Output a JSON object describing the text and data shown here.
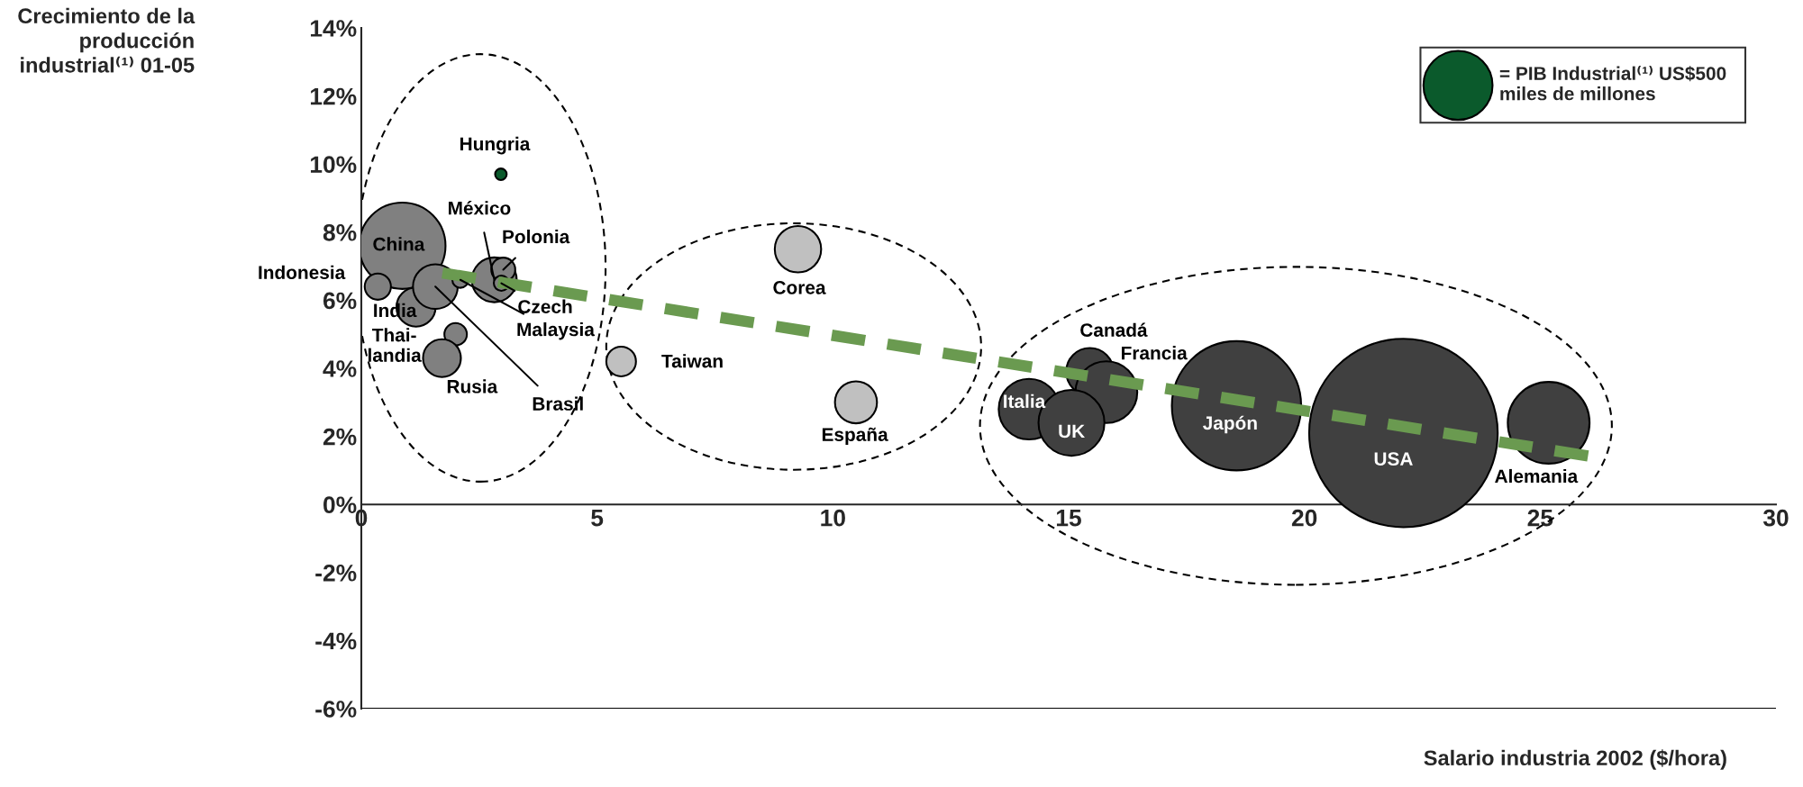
{
  "chart_data": {
    "type": "bubble",
    "xlabel": "Salario industria 2002 ($/hora)",
    "xlim": [
      0,
      30
    ],
    "xticks": [
      0,
      5,
      10,
      15,
      20,
      25,
      30
    ],
    "ylim": [
      -6,
      14
    ],
    "yticks": [
      {
        "value": -6,
        "label": "-6%"
      },
      {
        "value": -4,
        "label": "-4%"
      },
      {
        "value": -2,
        "label": "-2%"
      },
      {
        "value": 0,
        "label": "0%"
      },
      {
        "value": 2,
        "label": "2%"
      },
      {
        "value": 4,
        "label": "4%"
      },
      {
        "value": 6,
        "label": "6%"
      },
      {
        "value": 8,
        "label": "8%"
      },
      {
        "value": 10,
        "label": "10%"
      },
      {
        "value": 12,
        "label": "12%"
      },
      {
        "value": 14,
        "label": "14%"
      }
    ],
    "grid": false,
    "size_legend": [
      {
        "value": 500,
        "label": "= PIB Industrial⁽¹⁾ US$500\nmiles de millones"
      }
    ],
    "series": [
      {
        "color": "#0b5a2c",
        "x": [
          0.87,
          0.35,
          1.16,
          1.57,
          2.82,
          3.01,
          2.97,
          2.1,
          2.0,
          1.71,
          2.96,
          9.26,
          5.51,
          10.49,
          14.16,
          15.45,
          15.8,
          15.06,
          18.56,
          22.1,
          25.18
        ],
        "values": [
          7.6,
          6.4,
          5.8,
          6.4,
          6.6,
          6.9,
          6.5,
          6.6,
          5.0,
          4.3,
          9.7,
          7.5,
          4.2,
          3.0,
          2.8,
          3.9,
          3.3,
          2.4,
          2.9,
          2.1,
          2.4
        ],
        "sizes": [
          780,
          72,
          160,
          210,
          210,
          60,
          24,
          27,
          53,
          150,
          14,
          225,
          92,
          185,
          385,
          235,
          400,
          455,
          1750,
          3720,
          700
        ],
        "colors": [
          "#808080",
          "#808080",
          "#808080",
          "#808080",
          "#808080",
          "#808080",
          "#808080",
          "#808080",
          "#808080",
          "#808080",
          "#0b5a2c",
          "#c0c0c0",
          "#c0c0c0",
          "#c0c0c0",
          "#404040",
          "#404040",
          "#404040",
          "#404040",
          "#404040",
          "#404040",
          "#404040"
        ]
      },
      {
        "type": "line",
        "color": "#6a9a50",
        "line_style": "dashed",
        "marker": "none",
        "x": [
          1.72,
          26.35
        ],
        "values": [
          6.8,
          1.35
        ]
      }
    ],
    "annotations": [
      {
        "text": "China",
        "x": 0.87,
        "y": 7.6
      },
      {
        "text": "Indonesia",
        "x": 0.35,
        "y": 6.4
      },
      {
        "text": "India",
        "x": 1.16,
        "y": 5.8
      },
      {
        "text": "Brasil",
        "x": 1.57,
        "y": 6.4
      },
      {
        "text": "México",
        "x": 2.82,
        "y": 6.6
      },
      {
        "text": "Polonia",
        "x": 3.01,
        "y": 6.9
      },
      {
        "text": "Czech",
        "x": 2.97,
        "y": 6.5
      },
      {
        "text": "Malaysia",
        "x": 2.1,
        "y": 6.6
      },
      {
        "text": "Thai-\nlandia",
        "x": 2.0,
        "y": 5.0
      },
      {
        "text": "Rusia",
        "x": 1.71,
        "y": 4.3
      },
      {
        "text": "Hungria",
        "x": 2.96,
        "y": 9.7
      },
      {
        "text": "Corea",
        "x": 9.26,
        "y": 7.5
      },
      {
        "text": "Taiwan",
        "x": 5.51,
        "y": 4.2
      },
      {
        "text": "España",
        "x": 10.49,
        "y": 3.0
      },
      {
        "text": "Italia",
        "x": 14.16,
        "y": 2.8
      },
      {
        "text": "Canadá",
        "x": 15.45,
        "y": 3.9
      },
      {
        "text": "Francia",
        "x": 15.8,
        "y": 3.3
      },
      {
        "text": "UK",
        "x": 15.06,
        "y": 2.4
      },
      {
        "text": "Japón",
        "x": 18.56,
        "y": 2.9
      },
      {
        "text": "USA",
        "x": 22.1,
        "y": 2.1
      },
      {
        "text": "Alemania",
        "x": 25.18,
        "y": 2.4
      },
      "Crecimiento de la\nproducción\nindustrial⁽¹⁾ 01-05"
    ]
  }
}
